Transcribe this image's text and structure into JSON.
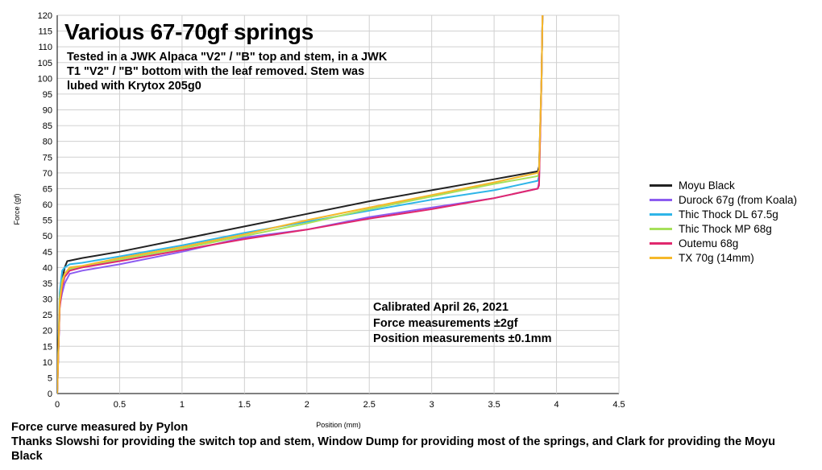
{
  "chart_data": {
    "type": "line",
    "title": "Various 67-70gf springs",
    "subtitle": "Tested in a JWK Alpaca \"V2\" / \"B\" top and stem, in a JWK T1 \"V2\" / \"B\" bottom with the leaf removed. Stem was lubed with Krytox 205g0",
    "xlabel": "Position (mm)",
    "ylabel": "Force (gf)",
    "xlim": [
      0,
      4.5
    ],
    "ylim": [
      0,
      120
    ],
    "xticks": [
      "0",
      "0.5",
      "1",
      "1.5",
      "2",
      "2.5",
      "3",
      "3.5",
      "4",
      "4.5"
    ],
    "yticks": [
      "0",
      "5",
      "10",
      "15",
      "20",
      "25",
      "30",
      "35",
      "40",
      "45",
      "50",
      "55",
      "60",
      "65",
      "70",
      "75",
      "80",
      "85",
      "90",
      "95",
      "100",
      "105",
      "110",
      "115",
      "120"
    ],
    "grid": true,
    "legend_position": "right",
    "series": [
      {
        "name": "Moyu Black",
        "color": "#222222",
        "x": [
          0,
          0.02,
          0.04,
          0.06,
          0.08,
          0.2,
          0.5,
          1.0,
          1.5,
          2.0,
          2.5,
          3.0,
          3.5,
          3.85,
          3.86,
          3.88,
          3.89
        ],
        "y": [
          0,
          28,
          36,
          40,
          42,
          43,
          45,
          49,
          53,
          57,
          61,
          64.5,
          68,
          70.5,
          72,
          100,
          125
        ]
      },
      {
        "name": "Durock 67g (from Koala)",
        "color": "#8c5cf0",
        "x": [
          0,
          0.02,
          0.04,
          0.06,
          0.1,
          0.2,
          0.5,
          1.0,
          1.5,
          2.0,
          2.5,
          3.0,
          3.5,
          3.85,
          3.86,
          3.88,
          3.89
        ],
        "y": [
          0,
          28,
          32,
          35,
          38,
          39,
          41,
          45,
          49.5,
          52,
          56,
          59,
          62,
          65,
          67,
          100,
          125
        ]
      },
      {
        "name": "Thic Thock DL 67.5g",
        "color": "#2fb5e8",
        "x": [
          0,
          0.02,
          0.04,
          0.06,
          0.1,
          0.2,
          0.5,
          1.0,
          1.5,
          2.0,
          2.5,
          3.0,
          3.5,
          3.85,
          3.86,
          3.88,
          3.89
        ],
        "y": [
          0,
          32,
          39,
          40,
          41,
          41.5,
          43.5,
          47,
          51,
          54.5,
          58,
          61.5,
          64.5,
          67.5,
          69,
          100,
          125
        ]
      },
      {
        "name": "Thic Thock MP 68g",
        "color": "#a6e05a",
        "x": [
          0,
          0.02,
          0.04,
          0.06,
          0.1,
          0.2,
          0.5,
          1.0,
          1.5,
          2.0,
          2.5,
          3.0,
          3.5,
          3.85,
          3.86,
          3.88,
          3.89
        ],
        "y": [
          0,
          30,
          36,
          38,
          39.5,
          40,
          42.5,
          46,
          50,
          54,
          58.5,
          62.5,
          66.5,
          69,
          70,
          100,
          125
        ]
      },
      {
        "name": "Outemu 68g",
        "color": "#e0286e",
        "x": [
          0,
          0.02,
          0.04,
          0.06,
          0.1,
          0.2,
          0.5,
          1.0,
          1.5,
          2.0,
          2.5,
          3.0,
          3.5,
          3.85,
          3.86,
          3.88,
          3.89
        ],
        "y": [
          0,
          27,
          34,
          37,
          39,
          40,
          42,
          45.5,
          49,
          52,
          55.5,
          58.5,
          62,
          65,
          66,
          100,
          125
        ]
      },
      {
        "name": "TX 70g (14mm)",
        "color": "#f5b82a",
        "x": [
          0,
          0.02,
          0.04,
          0.06,
          0.1,
          0.2,
          0.5,
          1.0,
          1.5,
          2.0,
          2.5,
          3.0,
          3.5,
          3.85,
          3.86,
          3.88,
          3.89
        ],
        "y": [
          0,
          29,
          35,
          38,
          40,
          40.5,
          43,
          46.5,
          50.5,
          55,
          59,
          63,
          67,
          70,
          71,
          100,
          125
        ]
      }
    ],
    "annotations": [
      "Calibrated April 26, 2021",
      "Force measurements ±2gf",
      "Position measurements ±0.1mm"
    ]
  },
  "footer": {
    "line1": "Force curve measured by Pylon",
    "line2": "Thanks Slowshi for providing the switch top and stem, Window Dump for providing most of the springs, and Clark for providing the Moyu Black"
  }
}
